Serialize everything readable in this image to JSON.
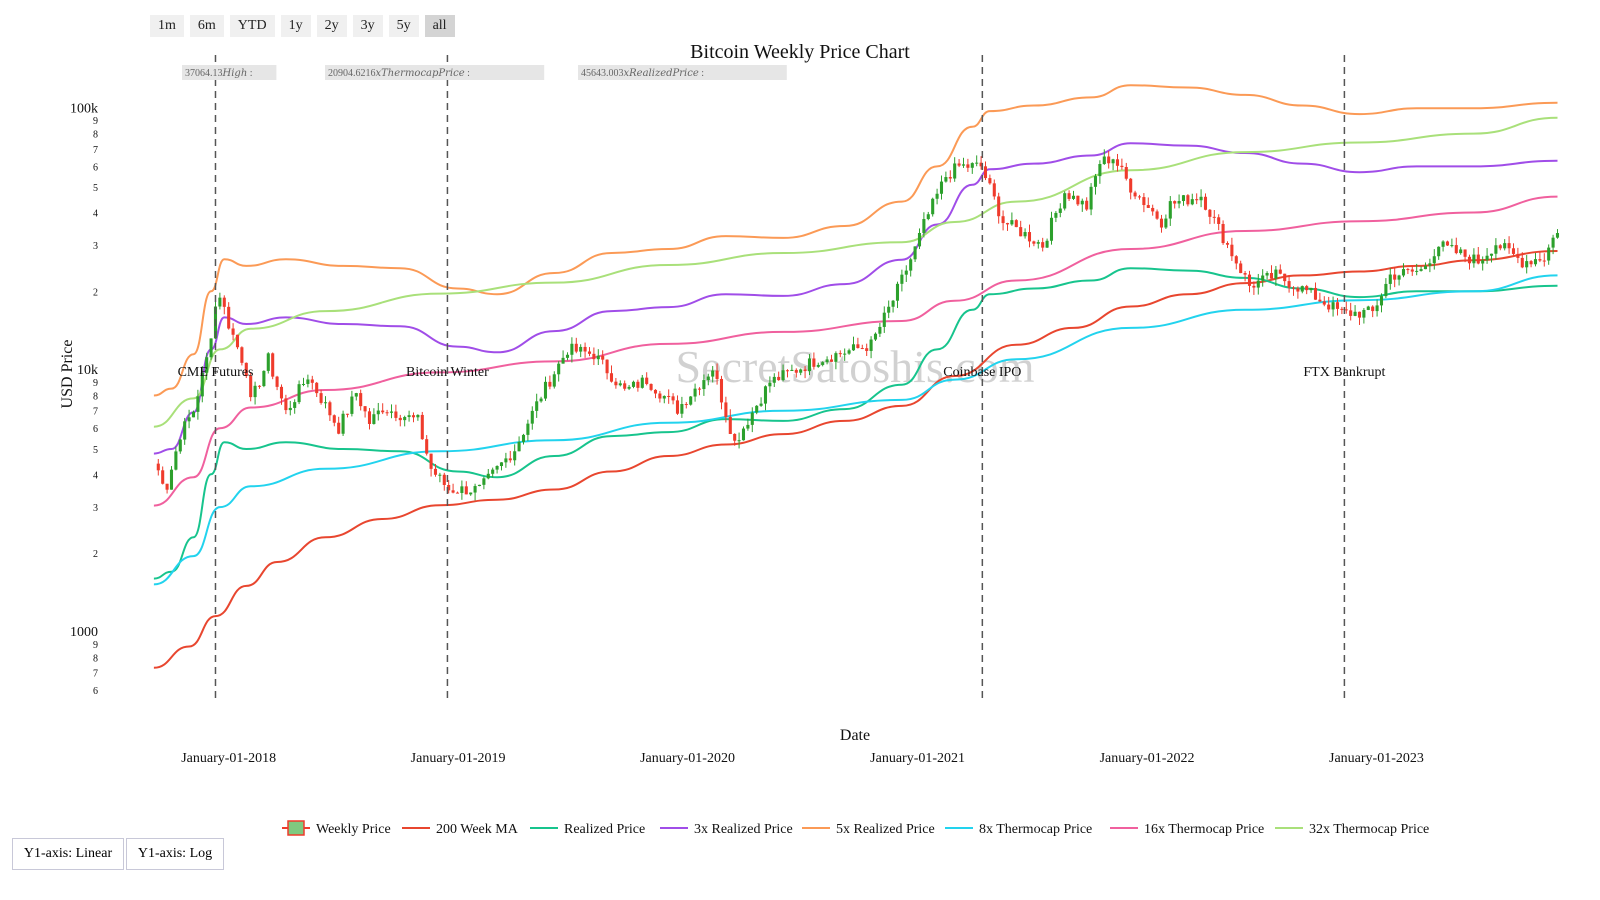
{
  "range_buttons": {
    "b1m": "1m",
    "b6m": "6m",
    "bytd": "YTD",
    "b1y": "1y",
    "b2y": "2y",
    "b3y": "3y",
    "b5y": "5y",
    "ball": "all"
  },
  "active_range": "all",
  "hover_labels": {
    "high": "37064.13𝐻𝑖𝑔ℎ :",
    "thermocap": "20904.6216𝑥𝑇ℎ𝑒𝑟𝑚𝑜𝑐𝑎𝑝𝑃𝑟𝑖𝑐𝑒 :",
    "realized": "45643.003𝑥𝑅𝑒𝑎𝑙𝑖𝑧𝑒𝑑𝑃𝑟𝑖𝑐𝑒 :"
  },
  "watermark": "SecretSatoshis.com",
  "y_scale_buttons": {
    "linear": "Y1-axis: Linear",
    "log": "Y1-axis: Log"
  },
  "chart_data": {
    "type": "line",
    "title": "Bitcoin Weekly Price Chart",
    "xlabel": "Date",
    "ylabel": "USD Price",
    "y_scale": "log",
    "ylim": [
      550,
      140000
    ],
    "xlim": [
      "2017-09-01",
      "2023-10-20"
    ],
    "x_ticks": [
      "2018-01-01",
      "2019-01-01",
      "2020-01-01",
      "2021-01-01",
      "2022-01-01",
      "2023-01-01"
    ],
    "x_tick_labels": [
      "January-01-2018",
      "January-01-2019",
      "January-01-2020",
      "January-01-2021",
      "January-01-2022",
      "January-01-2023"
    ],
    "y_ticks": [
      {
        "v": 600,
        "l": "6"
      },
      {
        "v": 700,
        "l": "7"
      },
      {
        "v": 800,
        "l": "8"
      },
      {
        "v": 900,
        "l": "9"
      },
      {
        "v": 1000,
        "l": "1000"
      },
      {
        "v": 2000,
        "l": "2"
      },
      {
        "v": 3000,
        "l": "3"
      },
      {
        "v": 4000,
        "l": "4"
      },
      {
        "v": 5000,
        "l": "5"
      },
      {
        "v": 6000,
        "l": "6"
      },
      {
        "v": 7000,
        "l": "7"
      },
      {
        "v": 8000,
        "l": "8"
      },
      {
        "v": 9000,
        "l": "9"
      },
      {
        "v": 10000,
        "l": "10k"
      },
      {
        "v": 20000,
        "l": "2"
      },
      {
        "v": 30000,
        "l": "3"
      },
      {
        "v": 40000,
        "l": "4"
      },
      {
        "v": 50000,
        "l": "5"
      },
      {
        "v": 60000,
        "l": "6"
      },
      {
        "v": 70000,
        "l": "7"
      },
      {
        "v": 80000,
        "l": "8"
      },
      {
        "v": 90000,
        "l": "9"
      },
      {
        "v": 100000,
        "l": "100k"
      }
    ],
    "events": [
      {
        "date": "2017-12-11",
        "label": "CME Futures"
      },
      {
        "date": "2018-12-15",
        "label": "Bitcoin Winter"
      },
      {
        "date": "2021-04-14",
        "label": "Coinbase IPO"
      },
      {
        "date": "2022-11-11",
        "label": "FTX Bankrupt"
      }
    ],
    "grid": false,
    "legend_position": "bottom",
    "candles": {
      "name": "Weekly Price",
      "up_color": "#2ca02c",
      "down_color": "#ef3b2c",
      "anchors": [
        [
          "2017-09-04",
          4400
        ],
        [
          "2017-09-25",
          3600
        ],
        [
          "2017-10-16",
          5700
        ],
        [
          "2017-11-06",
          7000
        ],
        [
          "2017-11-27",
          11000
        ],
        [
          "2017-12-11",
          17500
        ],
        [
          "2017-12-18",
          19500
        ],
        [
          "2018-01-01",
          15000
        ],
        [
          "2018-01-29",
          10000
        ],
        [
          "2018-02-05",
          7500
        ],
        [
          "2018-03-05",
          11000
        ],
        [
          "2018-04-02",
          6900
        ],
        [
          "2018-05-07",
          9500
        ],
        [
          "2018-06-25",
          6000
        ],
        [
          "2018-07-23",
          8200
        ],
        [
          "2018-08-13",
          6300
        ],
        [
          "2018-09-03",
          7200
        ],
        [
          "2018-10-29",
          6400
        ],
        [
          "2018-11-19",
          4200
        ],
        [
          "2018-12-17",
          3500
        ],
        [
          "2019-02-04",
          3500
        ],
        [
          "2019-04-01",
          5000
        ],
        [
          "2019-05-13",
          8000
        ],
        [
          "2019-06-24",
          12000
        ],
        [
          "2019-08-05",
          11500
        ],
        [
          "2019-09-23",
          8300
        ],
        [
          "2019-10-28",
          9200
        ],
        [
          "2019-12-16",
          7100
        ],
        [
          "2020-02-10",
          10200
        ],
        [
          "2020-03-16",
          5300
        ],
        [
          "2020-05-11",
          9000
        ],
        [
          "2020-07-27",
          11000
        ],
        [
          "2020-10-19",
          12500
        ],
        [
          "2020-11-23",
          18500
        ],
        [
          "2020-12-28",
          29000
        ],
        [
          "2021-01-11",
          36000
        ],
        [
          "2021-02-15",
          55000
        ],
        [
          "2021-03-08",
          60000
        ],
        [
          "2021-04-12",
          60000
        ],
        [
          "2021-05-17",
          37000
        ],
        [
          "2021-06-21",
          33000
        ],
        [
          "2021-07-19",
          30000
        ],
        [
          "2021-08-23",
          48000
        ],
        [
          "2021-09-27",
          42000
        ],
        [
          "2021-10-18",
          62000
        ],
        [
          "2021-11-08",
          65000
        ],
        [
          "2021-12-06",
          50000
        ],
        [
          "2022-01-24",
          37000
        ],
        [
          "2022-02-07",
          43000
        ],
        [
          "2022-03-28",
          46500
        ],
        [
          "2022-05-09",
          30000
        ],
        [
          "2022-06-13",
          21000
        ],
        [
          "2022-07-25",
          23000
        ],
        [
          "2022-09-12",
          20000
        ],
        [
          "2022-11-07",
          16500
        ],
        [
          "2022-12-26",
          16600
        ],
        [
          "2023-01-23",
          23000
        ],
        [
          "2023-03-13",
          24000
        ],
        [
          "2023-04-10",
          30000
        ],
        [
          "2023-06-12",
          26000
        ],
        [
          "2023-07-10",
          30500
        ],
        [
          "2023-08-21",
          26000
        ],
        [
          "2023-09-25",
          27000
        ],
        [
          "2023-10-16",
          34500
        ]
      ]
    },
    "series": [
      {
        "name": "200 Week MA",
        "color": "#e8462f",
        "points": [
          [
            "2017-09-04",
            730
          ],
          [
            "2017-10-30",
            880
          ],
          [
            "2017-12-11",
            1150
          ],
          [
            "2018-01-29",
            1500
          ],
          [
            "2018-03-19",
            1850
          ],
          [
            "2018-06-04",
            2300
          ],
          [
            "2018-09-03",
            2700
          ],
          [
            "2018-12-03",
            3050
          ],
          [
            "2019-03-04",
            3200
          ],
          [
            "2019-06-03",
            3500
          ],
          [
            "2019-09-02",
            4100
          ],
          [
            "2019-12-02",
            4700
          ],
          [
            "2020-03-02",
            5200
          ],
          [
            "2020-06-01",
            5700
          ],
          [
            "2020-09-07",
            6400
          ],
          [
            "2020-12-07",
            7300
          ],
          [
            "2021-03-01",
            9500
          ],
          [
            "2021-06-07",
            12500
          ],
          [
            "2021-09-06",
            14500
          ],
          [
            "2021-12-06",
            17500
          ],
          [
            "2022-03-07",
            19500
          ],
          [
            "2022-06-06",
            21500
          ],
          [
            "2022-09-05",
            23000
          ],
          [
            "2022-12-05",
            23800
          ],
          [
            "2023-03-06",
            25000
          ],
          [
            "2023-06-05",
            26300
          ],
          [
            "2023-10-16",
            28500
          ]
        ]
      },
      {
        "name": "Realized Price",
        "color": "#17c48d",
        "points": [
          [
            "2017-09-04",
            1600
          ],
          [
            "2017-10-02",
            1700
          ],
          [
            "2017-11-06",
            2300
          ],
          [
            "2017-12-04",
            4000
          ],
          [
            "2017-12-25",
            5300
          ],
          [
            "2018-01-29",
            5000
          ],
          [
            "2018-04-02",
            5300
          ],
          [
            "2018-07-02",
            5000
          ],
          [
            "2018-10-01",
            4900
          ],
          [
            "2018-12-31",
            4100
          ],
          [
            "2019-03-04",
            3900
          ],
          [
            "2019-06-03",
            4700
          ],
          [
            "2019-09-02",
            5600
          ],
          [
            "2019-12-02",
            5800
          ],
          [
            "2020-03-02",
            6500
          ],
          [
            "2020-06-01",
            6400
          ],
          [
            "2020-09-07",
            7100
          ],
          [
            "2020-12-07",
            8800
          ],
          [
            "2021-02-01",
            12000
          ],
          [
            "2021-03-29",
            17000
          ],
          [
            "2021-04-26",
            19500
          ],
          [
            "2021-07-05",
            20500
          ],
          [
            "2021-10-04",
            22000
          ],
          [
            "2021-12-06",
            24500
          ],
          [
            "2022-03-07",
            24000
          ],
          [
            "2022-06-06",
            22500
          ],
          [
            "2022-09-05",
            20500
          ],
          [
            "2022-12-05",
            19000
          ],
          [
            "2023-03-06",
            20000
          ],
          [
            "2023-06-05",
            20000
          ],
          [
            "2023-10-16",
            21000
          ]
        ]
      },
      {
        "name": "3x Realized Price",
        "color": "#a04de8",
        "points": [
          [
            "2017-09-04",
            4800
          ],
          [
            "2017-10-02",
            5000
          ],
          [
            "2017-11-06",
            6900
          ],
          [
            "2017-12-04",
            12000
          ],
          [
            "2017-12-25",
            15900
          ],
          [
            "2018-01-29",
            15000
          ],
          [
            "2018-04-02",
            15900
          ],
          [
            "2018-07-02",
            15000
          ],
          [
            "2018-10-01",
            14700
          ],
          [
            "2018-12-31",
            12300
          ],
          [
            "2019-03-04",
            11700
          ],
          [
            "2019-06-03",
            14100
          ],
          [
            "2019-09-02",
            16800
          ],
          [
            "2019-12-02",
            17400
          ],
          [
            "2020-03-02",
            19500
          ],
          [
            "2020-06-01",
            19200
          ],
          [
            "2020-09-07",
            21300
          ],
          [
            "2020-12-07",
            26400
          ],
          [
            "2021-02-01",
            36000
          ],
          [
            "2021-03-29",
            51000
          ],
          [
            "2021-04-26",
            58500
          ],
          [
            "2021-07-05",
            61500
          ],
          [
            "2021-10-04",
            66000
          ],
          [
            "2021-12-06",
            73500
          ],
          [
            "2022-03-07",
            72000
          ],
          [
            "2022-06-06",
            67500
          ],
          [
            "2022-09-05",
            61500
          ],
          [
            "2022-12-05",
            57000
          ],
          [
            "2023-03-06",
            60000
          ],
          [
            "2023-06-05",
            60000
          ],
          [
            "2023-10-16",
            63000
          ]
        ]
      },
      {
        "name": "5x Realized Price",
        "color": "#fb9a56",
        "points": [
          [
            "2017-09-04",
            8000
          ],
          [
            "2017-10-02",
            8500
          ],
          [
            "2017-11-06",
            11500
          ],
          [
            "2017-12-04",
            20000
          ],
          [
            "2017-12-25",
            26500
          ],
          [
            "2018-01-29",
            25000
          ],
          [
            "2018-04-02",
            26500
          ],
          [
            "2018-07-02",
            25000
          ],
          [
            "2018-10-01",
            24500
          ],
          [
            "2018-12-31",
            20500
          ],
          [
            "2019-03-04",
            19500
          ],
          [
            "2019-06-03",
            23500
          ],
          [
            "2019-09-02",
            28000
          ],
          [
            "2019-12-02",
            29000
          ],
          [
            "2020-03-02",
            32500
          ],
          [
            "2020-06-01",
            32000
          ],
          [
            "2020-09-07",
            35500
          ],
          [
            "2020-12-07",
            44000
          ],
          [
            "2021-02-01",
            60000
          ],
          [
            "2021-03-29",
            85000
          ],
          [
            "2021-04-26",
            97500
          ],
          [
            "2021-07-05",
            102500
          ],
          [
            "2021-10-04",
            110000
          ],
          [
            "2021-12-06",
            122500
          ],
          [
            "2022-03-07",
            120000
          ],
          [
            "2022-06-06",
            112500
          ],
          [
            "2022-09-05",
            102500
          ],
          [
            "2022-12-05",
            95000
          ],
          [
            "2023-03-06",
            100000
          ],
          [
            "2023-06-05",
            100000
          ],
          [
            "2023-10-16",
            105000
          ]
        ]
      },
      {
        "name": "8x Thermocap Price",
        "color": "#22d3ee",
        "points": [
          [
            "2017-09-04",
            1520
          ],
          [
            "2017-11-06",
            1950
          ],
          [
            "2017-12-18",
            3000
          ],
          [
            "2018-02-05",
            3600
          ],
          [
            "2018-06-04",
            4200
          ],
          [
            "2018-12-03",
            4900
          ],
          [
            "2019-06-03",
            5400
          ],
          [
            "2019-12-02",
            6300
          ],
          [
            "2020-06-03",
            7000
          ],
          [
            "2020-12-07",
            7700
          ],
          [
            "2021-03-01",
            9200
          ],
          [
            "2021-06-07",
            11000
          ],
          [
            "2021-12-06",
            14500
          ],
          [
            "2022-06-06",
            17000
          ],
          [
            "2022-12-05",
            18500
          ],
          [
            "2023-06-05",
            20000
          ],
          [
            "2023-10-16",
            23000
          ]
        ]
      },
      {
        "name": "16x Thermocap Price",
        "color": "#f0609e",
        "points": [
          [
            "2017-09-04",
            3040
          ],
          [
            "2017-11-06",
            3900
          ],
          [
            "2017-12-18",
            6000
          ],
          [
            "2018-02-05",
            7200
          ],
          [
            "2018-06-04",
            8400
          ],
          [
            "2018-12-03",
            9800
          ],
          [
            "2019-06-03",
            10800
          ],
          [
            "2019-12-02",
            12600
          ],
          [
            "2020-06-03",
            14000
          ],
          [
            "2020-12-07",
            15400
          ],
          [
            "2021-03-01",
            18400
          ],
          [
            "2021-06-07",
            22000
          ],
          [
            "2021-12-06",
            29000
          ],
          [
            "2022-06-06",
            34000
          ],
          [
            "2022-12-05",
            37000
          ],
          [
            "2023-06-05",
            40000
          ],
          [
            "2023-10-16",
            46000
          ]
        ]
      },
      {
        "name": "32x Thermocap Price",
        "color": "#a9e07a",
        "points": [
          [
            "2017-09-04",
            6080
          ],
          [
            "2017-11-06",
            7800
          ],
          [
            "2017-12-18",
            12000
          ],
          [
            "2018-02-05",
            14400
          ],
          [
            "2018-06-04",
            16800
          ],
          [
            "2018-12-03",
            19600
          ],
          [
            "2019-06-03",
            21600
          ],
          [
            "2019-12-02",
            25200
          ],
          [
            "2020-06-03",
            28000
          ],
          [
            "2020-12-07",
            30800
          ],
          [
            "2021-03-01",
            36800
          ],
          [
            "2021-06-07",
            44000
          ],
          [
            "2021-12-06",
            58000
          ],
          [
            "2022-06-06",
            68000
          ],
          [
            "2022-12-05",
            74000
          ],
          [
            "2023-06-05",
            80000
          ],
          [
            "2023-10-16",
            92000
          ]
        ]
      }
    ],
    "legend": [
      "Weekly Price",
      "200 Week MA",
      "Realized Price",
      "3x Realized Price",
      "5x Realized Price",
      "8x Thermocap Price",
      "16x Thermocap Price",
      "32x Thermocap Price"
    ]
  }
}
